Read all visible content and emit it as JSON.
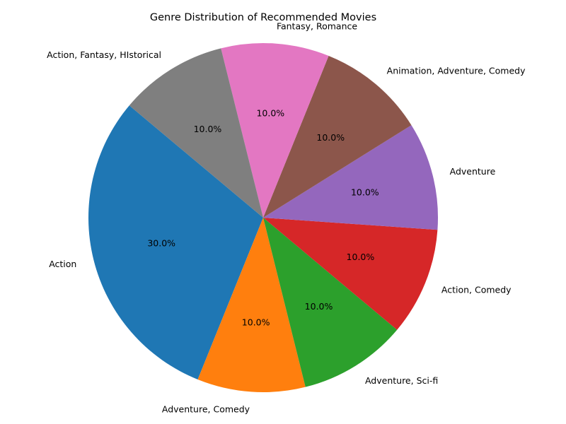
{
  "chart_data": {
    "type": "pie",
    "title": "Genre Distribution of Recommended Movies",
    "categories": [
      "Action",
      "Adventure, Comedy",
      "Adventure, Sci-fi",
      "Action, Comedy",
      "Adventure",
      "Animation, Adventure, Comedy",
      "Fantasy, Romance",
      "Action, Fantasy, HIstorical"
    ],
    "values": [
      3,
      1,
      1,
      1,
      1,
      1,
      1,
      1
    ],
    "percent_labels": [
      "30.0%",
      "10.0%",
      "10.0%",
      "10.0%",
      "10.0%",
      "10.0%",
      "10.0%",
      "10.0%"
    ],
    "colors": [
      "#1f77b4",
      "#ff7f0e",
      "#2ca02c",
      "#d62728",
      "#9467bd",
      "#8c564b",
      "#e377c2",
      "#7f7f7f"
    ],
    "start_angle_deg": 140,
    "direction": "counterclockwise",
    "legend": "none"
  }
}
